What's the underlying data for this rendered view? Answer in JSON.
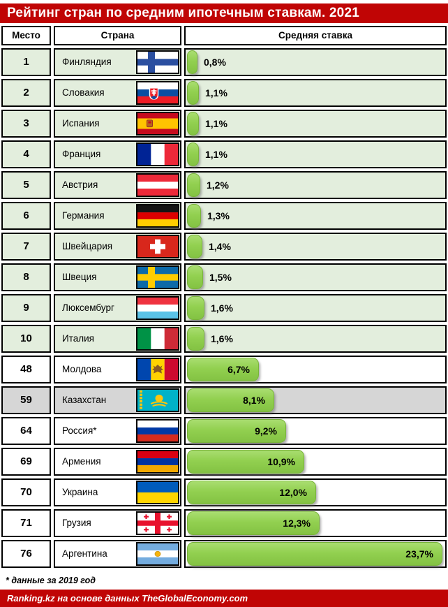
{
  "title": "Рейтинг стран по средним ипотечным ставкам. 2021",
  "columns": {
    "rank": "Место",
    "country": "Страна",
    "rate": "Средняя ставка"
  },
  "footnote": "* данные за 2019 год",
  "source": "Ranking.kz на основе данных TheGlobalEconomy.com",
  "colors": {
    "accent_red": "#c00505",
    "bar_green": "#92d050",
    "row_green": "#e3eedd",
    "row_gray": "#d6d6d6",
    "row_white": "#ffffff",
    "border_black": "#000000"
  },
  "chart_data": {
    "type": "bar",
    "orientation": "horizontal",
    "title": "Рейтинг стран по средним ипотечным ставкам. 2021",
    "categories": [
      "Финляндия",
      "Словакия",
      "Испания",
      "Франция",
      "Австрия",
      "Германия",
      "Швейцария",
      "Швеция",
      "Люксембург",
      "Италия",
      "Молдова",
      "Казахстан",
      "Россия*",
      "Армения",
      "Украина",
      "Грузия",
      "Аргентина"
    ],
    "values": [
      0.8,
      1.1,
      1.1,
      1.1,
      1.2,
      1.3,
      1.4,
      1.5,
      1.6,
      1.6,
      6.7,
      8.1,
      9.2,
      10.9,
      12.0,
      12.3,
      23.7
    ],
    "ranks": [
      1,
      2,
      3,
      4,
      5,
      6,
      7,
      8,
      9,
      10,
      48,
      59,
      64,
      69,
      70,
      71,
      76
    ],
    "value_labels": [
      "0,8%",
      "1,1%",
      "1,1%",
      "1,1%",
      "1,2%",
      "1,3%",
      "1,4%",
      "1,5%",
      "1,6%",
      "1,6%",
      "6,7%",
      "8,1%",
      "9,2%",
      "10,9%",
      "12,0%",
      "12,3%",
      "23,7%"
    ],
    "xlabel": "Средняя ставка",
    "xlim": [
      0,
      24.4
    ],
    "grid": false,
    "legend": false,
    "highlighted_category": "Казахстан",
    "note": "* данные за 2019 год",
    "source": "Ranking.kz на основе данных TheGlobalEconomy.com"
  },
  "table": {
    "rows": [
      {
        "rank": "1",
        "country": "Финляндия",
        "flag": "finland",
        "value": 0.8,
        "label": "0,8%",
        "highlight": "green"
      },
      {
        "rank": "2",
        "country": "Словакия",
        "flag": "slovakia",
        "value": 1.1,
        "label": "1,1%",
        "highlight": "green"
      },
      {
        "rank": "3",
        "country": "Испания",
        "flag": "spain",
        "value": 1.1,
        "label": "1,1%",
        "highlight": "green"
      },
      {
        "rank": "4",
        "country": "Франция",
        "flag": "france",
        "value": 1.1,
        "label": "1,1%",
        "highlight": "green"
      },
      {
        "rank": "5",
        "country": "Австрия",
        "flag": "austria",
        "value": 1.2,
        "label": "1,2%",
        "highlight": "green"
      },
      {
        "rank": "6",
        "country": "Германия",
        "flag": "germany",
        "value": 1.3,
        "label": "1,3%",
        "highlight": "green"
      },
      {
        "rank": "7",
        "country": "Швейцария",
        "flag": "switzerland",
        "value": 1.4,
        "label": "1,4%",
        "highlight": "green"
      },
      {
        "rank": "8",
        "country": "Швеция",
        "flag": "sweden",
        "value": 1.5,
        "label": "1,5%",
        "highlight": "green"
      },
      {
        "rank": "9",
        "country": "Люксембург",
        "flag": "luxembourg",
        "value": 1.6,
        "label": "1,6%",
        "highlight": "green"
      },
      {
        "rank": "10",
        "country": "Италия",
        "flag": "italy",
        "value": 1.6,
        "label": "1,6%",
        "highlight": "green"
      },
      {
        "rank": "48",
        "country": "Молдова",
        "flag": "moldova",
        "value": 6.7,
        "label": "6,7%",
        "highlight": "white"
      },
      {
        "rank": "59",
        "country": "Казахстан",
        "flag": "kazakhstan",
        "value": 8.1,
        "label": "8,1%",
        "highlight": "gray"
      },
      {
        "rank": "64",
        "country": "Россия*",
        "flag": "russia",
        "value": 9.2,
        "label": "9,2%",
        "highlight": "white"
      },
      {
        "rank": "69",
        "country": "Армения",
        "flag": "armenia",
        "value": 10.9,
        "label": "10,9%",
        "highlight": "white"
      },
      {
        "rank": "70",
        "country": "Украина",
        "flag": "ukraine",
        "value": 12.0,
        "label": "12,0%",
        "highlight": "white"
      },
      {
        "rank": "71",
        "country": "Грузия",
        "flag": "georgia",
        "value": 12.3,
        "label": "12,3%",
        "highlight": "white"
      },
      {
        "rank": "76",
        "country": "Аргентина",
        "flag": "argentina",
        "value": 23.7,
        "label": "23,7%",
        "highlight": "white"
      }
    ]
  }
}
